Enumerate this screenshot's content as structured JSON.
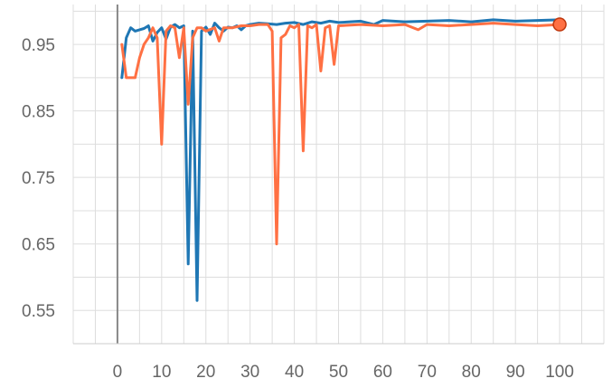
{
  "chart_data": {
    "type": "line",
    "title": "",
    "xlabel": "",
    "ylabel": "",
    "xlim": [
      -10,
      110
    ],
    "ylim": [
      0.5,
      1.01
    ],
    "grid": true,
    "legend": "none",
    "x_ticks": [
      0,
      10,
      20,
      30,
      40,
      50,
      60,
      70,
      80,
      90,
      100
    ],
    "y_ticks": [
      0.55,
      0.65,
      0.75,
      0.85,
      0.95
    ],
    "y_tick_labels": [
      "0.55",
      "0.65",
      "0.75",
      "0.85",
      "0.95"
    ],
    "series": [
      {
        "color": "#1f77b4",
        "x": [
          1,
          2,
          3,
          4,
          5,
          6,
          7,
          8,
          9,
          10,
          11,
          12,
          13,
          14,
          15,
          16,
          17,
          18,
          19,
          20,
          21,
          22,
          23,
          24,
          25,
          26,
          27,
          28,
          29,
          30,
          32,
          34,
          36,
          38,
          40,
          42,
          44,
          46,
          48,
          50,
          55,
          58,
          60,
          65,
          70,
          75,
          80,
          85,
          90,
          95,
          100
        ],
        "y": [
          0.9,
          0.96,
          0.975,
          0.97,
          0.972,
          0.974,
          0.978,
          0.955,
          0.968,
          0.975,
          0.958,
          0.976,
          0.98,
          0.975,
          0.978,
          0.62,
          0.97,
          0.565,
          0.97,
          0.976,
          0.965,
          0.982,
          0.975,
          0.97,
          0.976,
          0.975,
          0.978,
          0.972,
          0.978,
          0.98,
          0.982,
          0.981,
          0.98,
          0.982,
          0.983,
          0.98,
          0.984,
          0.982,
          0.985,
          0.983,
          0.985,
          0.98,
          0.986,
          0.984,
          0.985,
          0.986,
          0.984,
          0.987,
          0.985,
          0.986,
          0.987
        ]
      },
      {
        "color": "#ff7043",
        "x": [
          1,
          2,
          3,
          4,
          5,
          6,
          7,
          8,
          9,
          10,
          11,
          12,
          13,
          14,
          15,
          16,
          17,
          18,
          19,
          20,
          22,
          23,
          24,
          26,
          28,
          30,
          32,
          34,
          35,
          36,
          37,
          38,
          39,
          40,
          41,
          42,
          43,
          44,
          45,
          46,
          47,
          48,
          49,
          50,
          55,
          60,
          65,
          68,
          70,
          75,
          80,
          85,
          90,
          95,
          100
        ],
        "y": [
          0.95,
          0.9,
          0.9,
          0.9,
          0.93,
          0.95,
          0.96,
          0.975,
          0.96,
          0.8,
          0.97,
          0.978,
          0.975,
          0.93,
          0.975,
          0.86,
          0.96,
          0.975,
          0.975,
          0.97,
          0.975,
          0.955,
          0.975,
          0.975,
          0.978,
          0.978,
          0.98,
          0.98,
          0.97,
          0.65,
          0.96,
          0.965,
          0.978,
          0.975,
          0.98,
          0.79,
          0.978,
          0.975,
          0.98,
          0.91,
          0.975,
          0.978,
          0.92,
          0.978,
          0.98,
          0.978,
          0.98,
          0.972,
          0.98,
          0.978,
          0.98,
          0.982,
          0.98,
          0.978,
          0.98
        ]
      }
    ]
  }
}
